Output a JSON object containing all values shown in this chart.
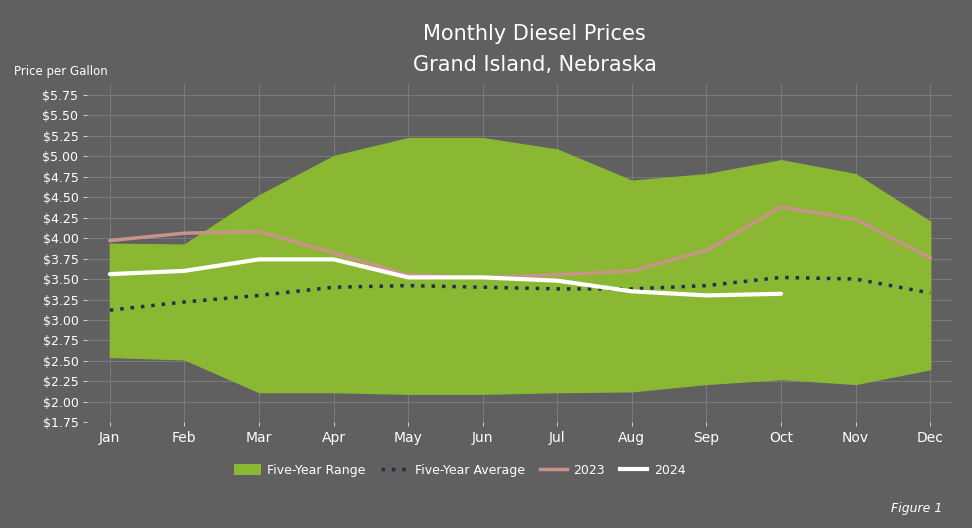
{
  "title_line1": "Monthly Diesel Prices",
  "title_line2": "Grand Island, Nebraska",
  "ylabel": "Price per Gallon",
  "figure_label": "Figure 1",
  "background_color": "#606060",
  "plot_bg_color": "#606060",
  "grid_color": "#808080",
  "months": [
    "Jan",
    "Feb",
    "Mar",
    "Apr",
    "May",
    "Jun",
    "Jul",
    "Aug",
    "Sep",
    "Oct",
    "Nov",
    "Dec"
  ],
  "five_year_high": [
    3.93,
    3.92,
    4.52,
    5.0,
    5.22,
    5.22,
    5.08,
    4.7,
    4.78,
    4.95,
    4.78,
    4.2
  ],
  "five_year_low": [
    2.55,
    2.52,
    2.12,
    2.12,
    2.1,
    2.1,
    2.12,
    2.13,
    2.22,
    2.28,
    2.22,
    2.4
  ],
  "five_year_avg": [
    3.12,
    3.22,
    3.3,
    3.4,
    3.42,
    3.4,
    3.38,
    3.38,
    3.42,
    3.52,
    3.5,
    3.33
  ],
  "prices_2023": [
    3.97,
    4.06,
    4.08,
    3.82,
    3.55,
    3.52,
    3.55,
    3.6,
    3.85,
    4.38,
    4.23,
    3.76
  ],
  "prices_2024": [
    3.56,
    3.6,
    3.74,
    3.74,
    3.52,
    3.52,
    3.48,
    3.35,
    3.3,
    3.32,
    null,
    null
  ],
  "range_color": "#8ab833",
  "avg_color": "#1e3050",
  "color_2023": "#c8948a",
  "color_2024": "#ffffff",
  "ylim_min": 1.75,
  "ylim_max": 5.875,
  "ytick_min": 1.75,
  "ytick_max": 5.75,
  "ytick_step": 0.25
}
